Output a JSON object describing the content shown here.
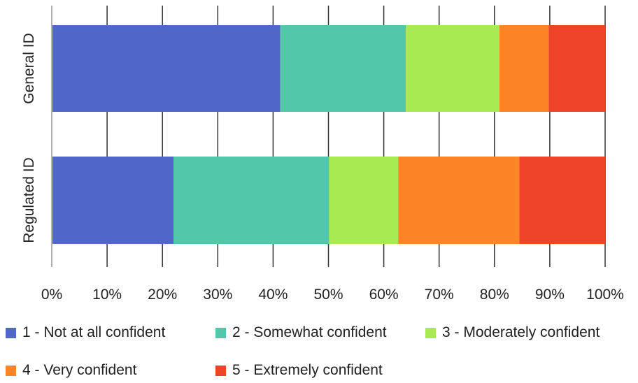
{
  "chart_data": {
    "type": "bar",
    "orientation": "horizontal",
    "stacked": "percent",
    "categories": [
      "General ID",
      "Regulated ID"
    ],
    "series": [
      {
        "name": "1 - Not at all confident",
        "color": "#5067c9",
        "values": [
          41.3,
          22.0
        ]
      },
      {
        "name": "2 - Somewhat confident",
        "color": "#52c7a9",
        "values": [
          22.7,
          28.1
        ]
      },
      {
        "name": "3 - Moderately confident",
        "color": "#a8ea52",
        "values": [
          16.9,
          12.5
        ]
      },
      {
        "name": "4 - Very confident",
        "color": "#fb8424",
        "values": [
          8.9,
          21.9
        ]
      },
      {
        "name": "5 - Extremely confident",
        "color": "#ee4327",
        "values": [
          10.2,
          15.5
        ]
      }
    ],
    "xlim": [
      0,
      100
    ],
    "xticks": [
      "0%",
      "10%",
      "20%",
      "30%",
      "40%",
      "50%",
      "60%",
      "70%",
      "80%",
      "90%",
      "100%"
    ],
    "grid": "vertical",
    "legend_position": "bottom",
    "title": "",
    "xlabel": "",
    "ylabel": ""
  }
}
